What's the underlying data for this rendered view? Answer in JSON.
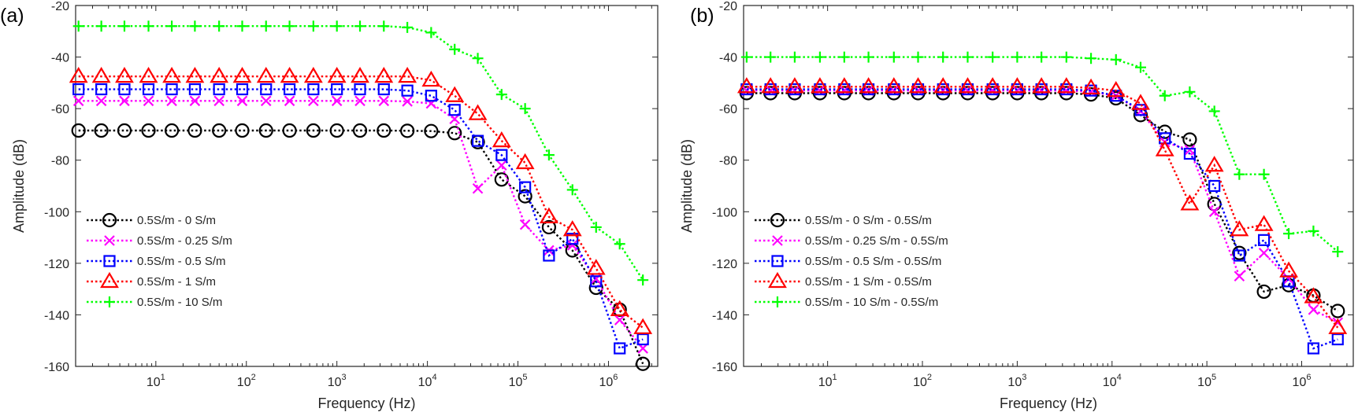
{
  "chart_data": [
    {
      "panel_label": "(a)",
      "type": "line",
      "xlabel": "Frequency (Hz)",
      "ylabel": "Amplitude (dB)",
      "xscale": "log",
      "xlim": [
        1.3,
        3500000
      ],
      "ylim": [
        -160,
        -20
      ],
      "yticks": [
        "-160",
        "-140",
        "-120",
        "-100",
        "-80",
        "-60",
        "-40",
        "-20"
      ],
      "xticks": [
        {
          "base": "10",
          "exp": "1",
          "value": 10
        },
        {
          "base": "10",
          "exp": "2",
          "value": 100
        },
        {
          "base": "10",
          "exp": "3",
          "value": 1000
        },
        {
          "base": "10",
          "exp": "4",
          "value": 10000
        },
        {
          "base": "10",
          "exp": "5",
          "value": 100000
        },
        {
          "base": "10",
          "exp": "6",
          "value": 1000000
        }
      ],
      "grid": false,
      "legend_position": "bottom-left",
      "x": [
        1.4,
        2.5,
        4.5,
        8.3,
        15,
        27,
        50,
        90,
        165,
        300,
        550,
        1000,
        1800,
        3300,
        6000,
        11000,
        20000,
        36000,
        66000,
        120000,
        220000,
        400000,
        730000,
        1330000,
        2400000
      ],
      "series": [
        {
          "name": "0.5S/m - 0 S/m",
          "color": "#000000",
          "marker": "circle",
          "values": [
            -68.5,
            -68.5,
            -68.5,
            -68.5,
            -68.5,
            -68.5,
            -68.5,
            -68.5,
            -68.5,
            -68.5,
            -68.5,
            -68.5,
            -68.5,
            -68.5,
            -68.6,
            -68.7,
            -69.5,
            -73,
            -87.5,
            -94,
            -106,
            -115,
            -129.5,
            -138,
            -159
          ]
        },
        {
          "name": "0.5S/m - 0.25 S/m",
          "color": "#ff00ff",
          "marker": "x",
          "values": [
            -57,
            -57,
            -57,
            -57,
            -57,
            -57,
            -57,
            -57,
            -57,
            -57,
            -57,
            -57,
            -57,
            -57,
            -57.2,
            -58,
            -64,
            -91,
            -82,
            -105,
            -115,
            -113,
            -126,
            -142,
            -153
          ]
        },
        {
          "name": "0.5S/m - 0.5 S/m",
          "color": "#0000ff",
          "marker": "square",
          "values": [
            -52.5,
            -52.5,
            -52.5,
            -52.5,
            -52.5,
            -52.5,
            -52.5,
            -52.5,
            -52.5,
            -52.5,
            -52.5,
            -52.5,
            -52.5,
            -52.5,
            -53,
            -55,
            -60.5,
            -72.5,
            -78,
            -90.5,
            -117,
            -110.5,
            -127,
            -153,
            -149.5
          ]
        },
        {
          "name": "0.5S/m - 1 S/m",
          "color": "#ff0000",
          "marker": "triangle",
          "values": [
            -47.5,
            -47.5,
            -47.5,
            -47.5,
            -47.5,
            -47.5,
            -47.5,
            -47.5,
            -47.5,
            -47.5,
            -47.5,
            -47.5,
            -47.5,
            -47.5,
            -47.5,
            -49,
            -55,
            -62,
            -72.5,
            -81,
            -102,
            -107,
            -122,
            -138,
            -145
          ]
        },
        {
          "name": "0.5S/m - 10 S/m",
          "color": "#00ff00",
          "marker": "plus",
          "values": [
            -28,
            -28,
            -28,
            -28,
            -28,
            -28,
            -28,
            -28,
            -28,
            -28,
            -28,
            -28,
            -28,
            -28,
            -28.5,
            -30.5,
            -37,
            -40.5,
            -54.5,
            -60,
            -78,
            -91.5,
            -106,
            -112.5,
            -126.5
          ]
        }
      ]
    },
    {
      "panel_label": "(b)",
      "type": "line",
      "xlabel": "Frequency (Hz)",
      "ylabel": "Amplitude (dB)",
      "xscale": "log",
      "xlim": [
        1.3,
        3500000
      ],
      "ylim": [
        -160,
        -20
      ],
      "yticks": [
        "-160",
        "-140",
        "-120",
        "-100",
        "-80",
        "-60",
        "-40",
        "-20"
      ],
      "xticks": [
        {
          "base": "10",
          "exp": "1",
          "value": 10
        },
        {
          "base": "10",
          "exp": "2",
          "value": 100
        },
        {
          "base": "10",
          "exp": "3",
          "value": 1000
        },
        {
          "base": "10",
          "exp": "4",
          "value": 10000
        },
        {
          "base": "10",
          "exp": "5",
          "value": 100000
        },
        {
          "base": "10",
          "exp": "6",
          "value": 1000000
        }
      ],
      "grid": false,
      "legend_position": "bottom-left",
      "x": [
        1.4,
        2.5,
        4.5,
        8.3,
        15,
        27,
        50,
        90,
        165,
        300,
        550,
        1000,
        1800,
        3300,
        6000,
        11000,
        20000,
        36000,
        66000,
        120000,
        220000,
        400000,
        730000,
        1330000,
        2400000
      ],
      "series": [
        {
          "name": "0.5S/m - 0 S/m - 0.5S/m",
          "color": "#000000",
          "marker": "circle",
          "values": [
            -54,
            -54,
            -54,
            -54,
            -54,
            -54,
            -54,
            -54,
            -54,
            -54,
            -54,
            -54,
            -54,
            -54,
            -54.5,
            -56,
            -62.5,
            -69,
            -72,
            -97,
            -116,
            -131,
            -128.5,
            -132.5,
            -138.5
          ]
        },
        {
          "name": "0.5S/m - 0.25 S/m - 0.5S/m",
          "color": "#ff00ff",
          "marker": "x",
          "values": [
            -53,
            -53,
            -53,
            -53,
            -53,
            -53,
            -53,
            -53,
            -53,
            -53,
            -53,
            -53,
            -53,
            -53,
            -53.5,
            -55,
            -61,
            -73,
            -76,
            -100,
            -125,
            -116,
            -126,
            -138,
            -143
          ]
        },
        {
          "name": "0.5S/m - 0.5 S/m - 0.5S/m",
          "color": "#0000ff",
          "marker": "square",
          "values": [
            -52.5,
            -52.5,
            -52.5,
            -52.5,
            -52.5,
            -52.5,
            -52.5,
            -52.5,
            -52.5,
            -52.5,
            -52.5,
            -52.5,
            -52.5,
            -52.5,
            -53,
            -55,
            -60.5,
            -71.5,
            -77.5,
            -90,
            -117,
            -111,
            -127,
            -153,
            -149.5
          ]
        },
        {
          "name": "0.5S/m - 1 S/m - 0.5S/m",
          "color": "#ff0000",
          "marker": "triangle",
          "values": [
            -51.5,
            -51.5,
            -51.5,
            -51.5,
            -51.5,
            -51.5,
            -51.5,
            -51.5,
            -51.5,
            -51.5,
            -51.5,
            -51.5,
            -51.5,
            -51.5,
            -52,
            -53,
            -58,
            -76,
            -97,
            -82,
            -107,
            -105,
            -123,
            -133,
            -145
          ]
        },
        {
          "name": "0.5S/m - 10 S/m - 0.5S/m",
          "color": "#00ff00",
          "marker": "plus",
          "values": [
            -40,
            -40,
            -40,
            -40,
            -40,
            -40,
            -40,
            -40,
            -40,
            -40,
            -40,
            -40,
            -40,
            -40,
            -40.5,
            -41,
            -44,
            -55,
            -53.5,
            -61,
            -85.5,
            -85.5,
            -108.5,
            -107.5,
            -115.5
          ]
        }
      ]
    }
  ]
}
